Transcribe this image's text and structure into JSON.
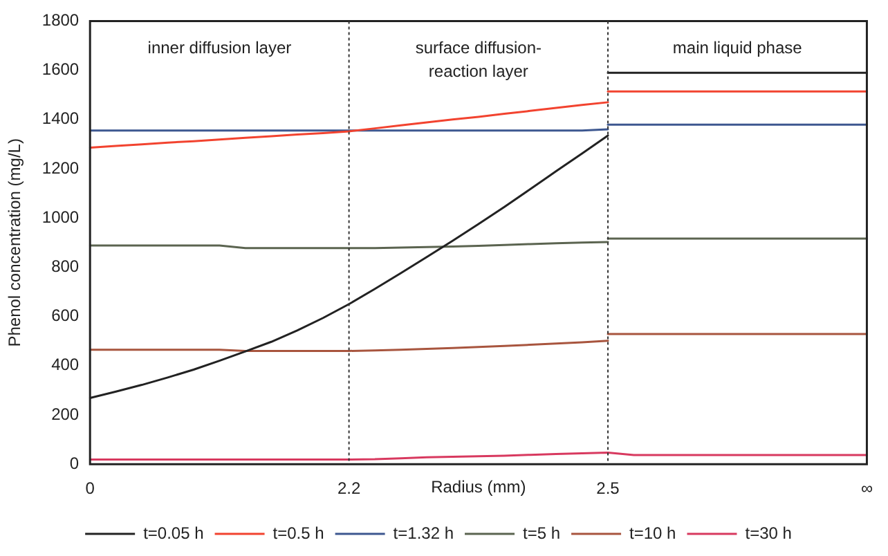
{
  "chart_data": {
    "type": "line",
    "xlabel": "Radius (mm)",
    "ylabel": "Phenol concentration (mg/L)",
    "categories": [
      "0",
      null,
      null,
      null,
      null,
      null,
      null,
      null,
      null,
      null,
      "2.2",
      null,
      null,
      null,
      null,
      null,
      null,
      null,
      null,
      null,
      "2.5",
      null,
      null,
      null,
      null,
      null,
      null,
      null,
      null,
      null,
      "∞"
    ],
    "ylim": [
      0,
      1800
    ],
    "yticks": [
      0,
      200,
      400,
      600,
      800,
      1000,
      1200,
      1400,
      1600,
      1800
    ],
    "grid": false,
    "legend": "bottom",
    "marker": "none",
    "line_style": "solid",
    "series": [
      {
        "name": "t=0.05 h",
        "color": "#222222",
        "values": [
          269,
          295,
          322,
          352,
          384,
          420,
          458,
          497,
          543,
          594,
          650,
          712,
          776,
          841,
          907,
          975,
          1045,
          1117,
          1190,
          1262,
          1335,
          null,
          null,
          null,
          null,
          null,
          null,
          null,
          null,
          null,
          null
        ]
      },
      {
        "name": "t=0.5 h",
        "color": "#f2432f",
        "values": [
          1286,
          1293,
          1299,
          1306,
          1312,
          1319,
          1326,
          1332,
          1339,
          1345,
          1352,
          1364,
          1376,
          1388,
          1400,
          1411,
          1423,
          1435,
          1447,
          1459,
          1470,
          null,
          null,
          null,
          null,
          null,
          null,
          null,
          null,
          null,
          null
        ]
      },
      {
        "name": "t=1.32 h",
        "color": "#3d5790",
        "values": [
          1355,
          1355,
          1355,
          1355,
          1355,
          1355,
          1355,
          1355,
          1355,
          1355,
          1355,
          1355,
          1355,
          1355,
          1355,
          1355,
          1355,
          1355,
          1355,
          1355,
          1360,
          null,
          null,
          null,
          null,
          null,
          null,
          null,
          null,
          null,
          null
        ]
      },
      {
        "name": "t=5 h",
        "color": "#5b6450",
        "values": [
          888,
          888,
          888,
          888,
          888,
          888,
          878,
          878,
          878,
          878,
          878,
          878,
          880,
          882,
          884,
          887,
          890,
          894,
          897,
          900,
          902,
          null,
          null,
          null,
          null,
          null,
          null,
          null,
          null,
          null,
          null
        ]
      },
      {
        "name": "t=10 h",
        "color": "#a8553e",
        "values": [
          465,
          465,
          465,
          465,
          465,
          465,
          460,
          460,
          460,
          460,
          460,
          462,
          465,
          468,
          472,
          476,
          480,
          485,
          490,
          495,
          501,
          null,
          null,
          null,
          null,
          null,
          null,
          null,
          null,
          null,
          null
        ]
      },
      {
        "name": "t=30 h",
        "color": "#d8395f",
        "values": [
          19,
          19,
          19,
          19,
          19,
          19,
          19,
          19,
          19,
          19,
          19,
          20,
          24,
          28,
          30,
          32,
          34,
          38,
          41,
          44,
          47,
          37,
          37,
          37,
          37,
          37,
          37,
          37,
          37,
          37,
          37
        ]
      },
      {
        "color": "#222222",
        "values": [
          null,
          null,
          null,
          null,
          null,
          null,
          null,
          null,
          null,
          null,
          null,
          null,
          null,
          null,
          null,
          null,
          null,
          null,
          null,
          null,
          1590,
          1590,
          1590,
          1590,
          1590,
          1590,
          1590,
          1590,
          1590,
          1590,
          1590
        ]
      },
      {
        "color": "#f2432f",
        "values": [
          null,
          null,
          null,
          null,
          null,
          null,
          null,
          null,
          null,
          null,
          null,
          null,
          null,
          null,
          null,
          null,
          null,
          null,
          null,
          null,
          1514,
          1514,
          1514,
          1514,
          1514,
          1514,
          1514,
          1514,
          1514,
          1514,
          1514
        ]
      },
      {
        "color": "#3d5790",
        "values": [
          null,
          null,
          null,
          null,
          null,
          null,
          null,
          null,
          null,
          null,
          null,
          null,
          null,
          null,
          null,
          null,
          null,
          null,
          null,
          null,
          1379,
          1379,
          1379,
          1379,
          1379,
          1379,
          1379,
          1379,
          1379,
          1379,
          1379
        ]
      },
      {
        "color": "#5b6450",
        "values": [
          null,
          null,
          null,
          null,
          null,
          null,
          null,
          null,
          null,
          null,
          null,
          null,
          null,
          null,
          null,
          null,
          null,
          null,
          null,
          null,
          916,
          916,
          916,
          916,
          916,
          916,
          916,
          916,
          916,
          916,
          916
        ]
      },
      {
        "color": "#a8553e",
        "values": [
          null,
          null,
          null,
          null,
          null,
          null,
          null,
          null,
          null,
          null,
          null,
          null,
          null,
          null,
          null,
          null,
          null,
          null,
          null,
          null,
          529,
          529,
          529,
          529,
          529,
          529,
          529,
          529,
          529,
          529,
          529
        ]
      }
    ],
    "ref_lines": [
      {
        "axis": "x",
        "value": "2.2",
        "color": "#333333",
        "line_style": "dotted"
      },
      {
        "axis": "x",
        "value": "2.5",
        "color": "#333333",
        "line_style": "dotted"
      }
    ],
    "annotations": [
      "inner diffusion layer",
      "surface diffusion-reaction layer",
      "main liquid phase"
    ]
  }
}
